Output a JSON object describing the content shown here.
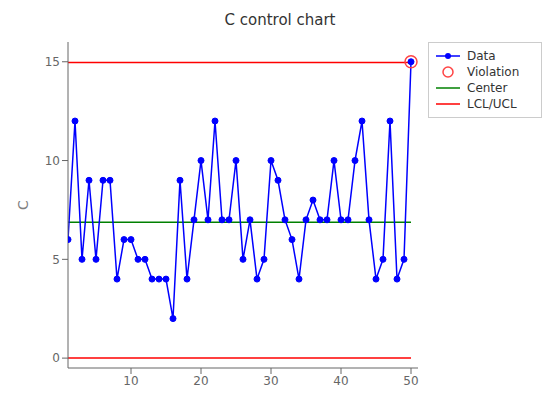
{
  "chart_data": {
    "type": "line",
    "title": "C control chart",
    "y_label": "C",
    "x": [
      1,
      2,
      3,
      4,
      5,
      6,
      7,
      8,
      9,
      10,
      11,
      12,
      13,
      14,
      15,
      16,
      17,
      18,
      19,
      20,
      21,
      22,
      23,
      24,
      25,
      26,
      27,
      28,
      29,
      30,
      31,
      32,
      33,
      34,
      35,
      36,
      37,
      38,
      39,
      40,
      41,
      42,
      43,
      44,
      45,
      46,
      47,
      48,
      49,
      50
    ],
    "xlim": [
      1,
      51
    ],
    "ylim": [
      -0.5,
      16
    ],
    "xticks": [
      10,
      20,
      30,
      40,
      50
    ],
    "yticks": [
      0,
      5,
      10,
      15
    ],
    "grid": false,
    "legend": "upper right",
    "series": [
      {
        "name": "Data",
        "type": "line",
        "color": "#0000FF",
        "marker": "circle",
        "values": [
          6,
          12,
          5,
          9,
          5,
          9,
          9,
          4,
          6,
          6,
          5,
          5,
          4,
          4,
          4,
          2,
          9,
          4,
          7,
          10,
          7,
          12,
          7,
          7,
          10,
          5,
          7,
          4,
          5,
          10,
          9,
          7,
          6,
          4,
          7,
          8,
          7,
          7,
          10,
          7,
          7,
          10,
          12,
          7,
          4,
          5,
          12,
          4,
          5,
          15
        ]
      },
      {
        "name": "Violation",
        "type": "scatter",
        "color": "#FF4444",
        "marker": "open_circle",
        "x": [
          50
        ],
        "values": [
          15
        ]
      },
      {
        "name": "Center",
        "type": "line",
        "color": "#008000",
        "x": [
          1,
          50
        ],
        "values": [
          6.88,
          6.88
        ]
      },
      {
        "name": "LCL/UCL",
        "type": "line",
        "color": "#FF0000",
        "x": [
          1,
          50
        ],
        "values": [
          14.96,
          14.96
        ],
        "lower": [
          0,
          0
        ]
      }
    ]
  }
}
